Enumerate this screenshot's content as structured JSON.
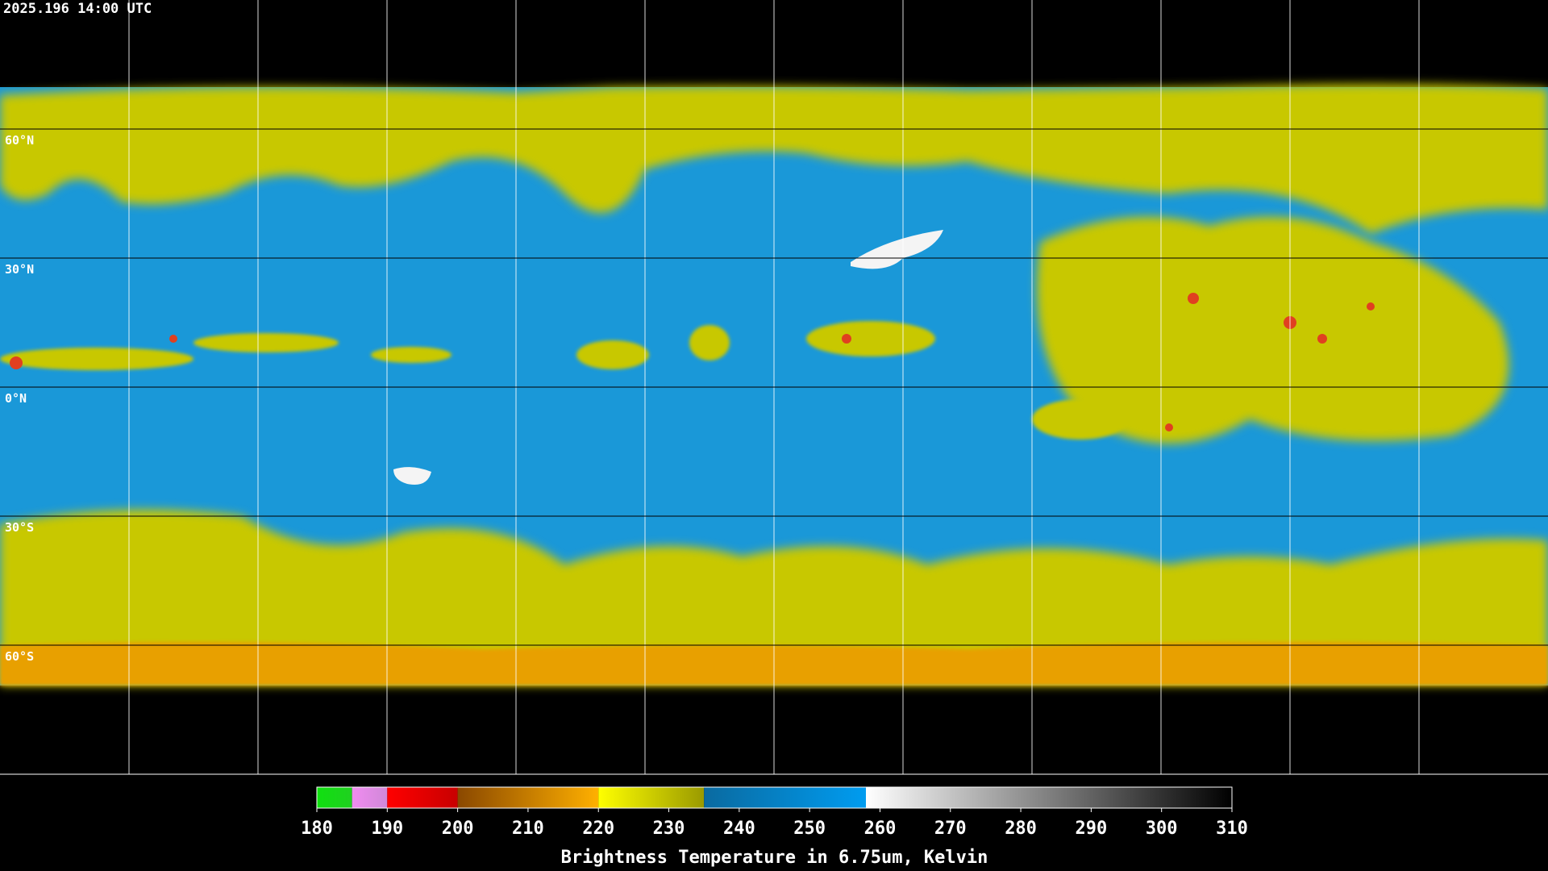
{
  "header": {
    "timestamp": "2025.196 14:00 UTC"
  },
  "map": {
    "latitude_labels": [
      "60°N",
      "30°N",
      "0°N",
      "30°S",
      "60°S"
    ]
  },
  "colorbar": {
    "title": "Brightness Temperature in 6.75um, Kelvin",
    "lim": [
      180,
      310
    ],
    "ticks": [
      180,
      190,
      200,
      210,
      220,
      230,
      240,
      250,
      260,
      270,
      280,
      290,
      300,
      310
    ],
    "segments": [
      {
        "from": 180,
        "to": 185,
        "colors": [
          "#10e010",
          "#20d020"
        ]
      },
      {
        "from": 185,
        "to": 190,
        "colors": [
          "#f08cf0",
          "#d088d8"
        ]
      },
      {
        "from": 190,
        "to": 200,
        "colors": [
          "#ff0000",
          "#c80000"
        ]
      },
      {
        "from": 200,
        "to": 220,
        "colors": [
          "#8a4800",
          "#ffb000"
        ]
      },
      {
        "from": 220,
        "to": 235,
        "colors": [
          "#ffff00",
          "#9a9a00"
        ]
      },
      {
        "from": 235,
        "to": 258,
        "colors": [
          "#0a6aa0",
          "#009cf0"
        ]
      },
      {
        "from": 258,
        "to": 310,
        "colors": [
          "#ffffff",
          "#000000"
        ]
      }
    ]
  }
}
